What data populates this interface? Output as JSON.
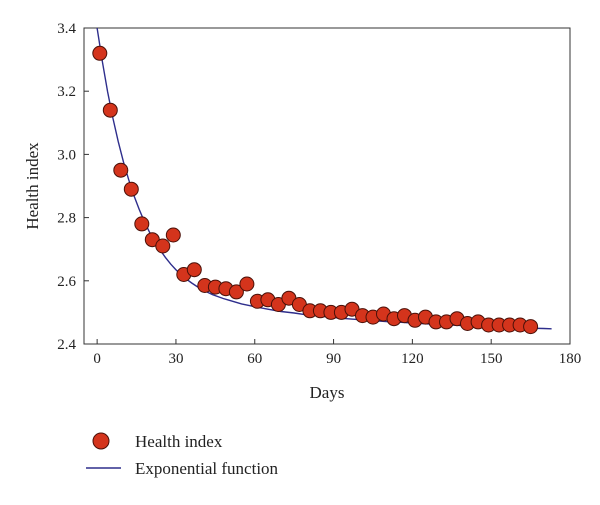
{
  "chart_data": {
    "type": "scatter",
    "title": "",
    "xlabel": "Days",
    "ylabel": "Health index",
    "xlim": [
      -5,
      180
    ],
    "ylim": [
      2.4,
      3.4
    ],
    "xticks": [
      "0",
      "30",
      "60",
      "90",
      "120",
      "150",
      "180"
    ],
    "yticks": [
      "2.4",
      "2.6",
      "2.8",
      "3.0",
      "3.2",
      "3.4"
    ],
    "grid": false,
    "legend_position": "bottom-left",
    "series": [
      {
        "name": "Health index",
        "kind": "scatter",
        "color": "#d4341c",
        "x": [
          1,
          5,
          9,
          13,
          17,
          21,
          25,
          29,
          33,
          37,
          41,
          45,
          49,
          53,
          57,
          61,
          65,
          69,
          73,
          77,
          81,
          85,
          89,
          93,
          97,
          101,
          105,
          109,
          113,
          117,
          121,
          125,
          129,
          133,
          137,
          141,
          145,
          149,
          153,
          157,
          161,
          165
        ],
        "y": [
          3.32,
          3.14,
          2.95,
          2.89,
          2.78,
          2.73,
          2.71,
          2.745,
          2.62,
          2.635,
          2.585,
          2.58,
          2.575,
          2.565,
          2.59,
          2.535,
          2.54,
          2.525,
          2.545,
          2.525,
          2.505,
          2.505,
          2.5,
          2.5,
          2.51,
          2.49,
          2.485,
          2.495,
          2.48,
          2.49,
          2.475,
          2.485,
          2.47,
          2.47,
          2.48,
          2.465,
          2.47,
          2.46,
          2.46,
          2.46,
          2.46,
          2.455
        ]
      },
      {
        "name": "Exponential function",
        "kind": "line",
        "color": "#2e2e8c",
        "x": [
          0,
          2,
          4,
          6,
          8,
          10,
          12,
          14,
          16,
          18,
          20,
          22,
          24,
          26,
          28,
          30,
          32,
          34,
          36,
          38,
          40,
          42,
          44,
          46,
          48,
          50,
          55,
          60,
          65,
          70,
          75,
          80,
          85,
          90,
          95,
          100,
          105,
          110,
          115,
          120,
          125,
          130,
          135,
          140,
          145,
          150,
          155,
          160,
          165,
          170,
          173
        ],
        "y": [
          3.4,
          3.293,
          3.198,
          3.115,
          3.041,
          2.977,
          2.92,
          2.87,
          2.826,
          2.787,
          2.753,
          2.723,
          2.697,
          2.674,
          2.653,
          2.635,
          2.619,
          2.605,
          2.593,
          2.582,
          2.572,
          2.564,
          2.556,
          2.55,
          2.544,
          2.539,
          2.527,
          2.518,
          2.51,
          2.503,
          2.498,
          2.492,
          2.488,
          2.484,
          2.48,
          2.477,
          2.474,
          2.471,
          2.469,
          2.466,
          2.464,
          2.462,
          2.46,
          2.458,
          2.456,
          2.455,
          2.453,
          2.452,
          2.45,
          2.449,
          2.448
        ]
      }
    ]
  }
}
